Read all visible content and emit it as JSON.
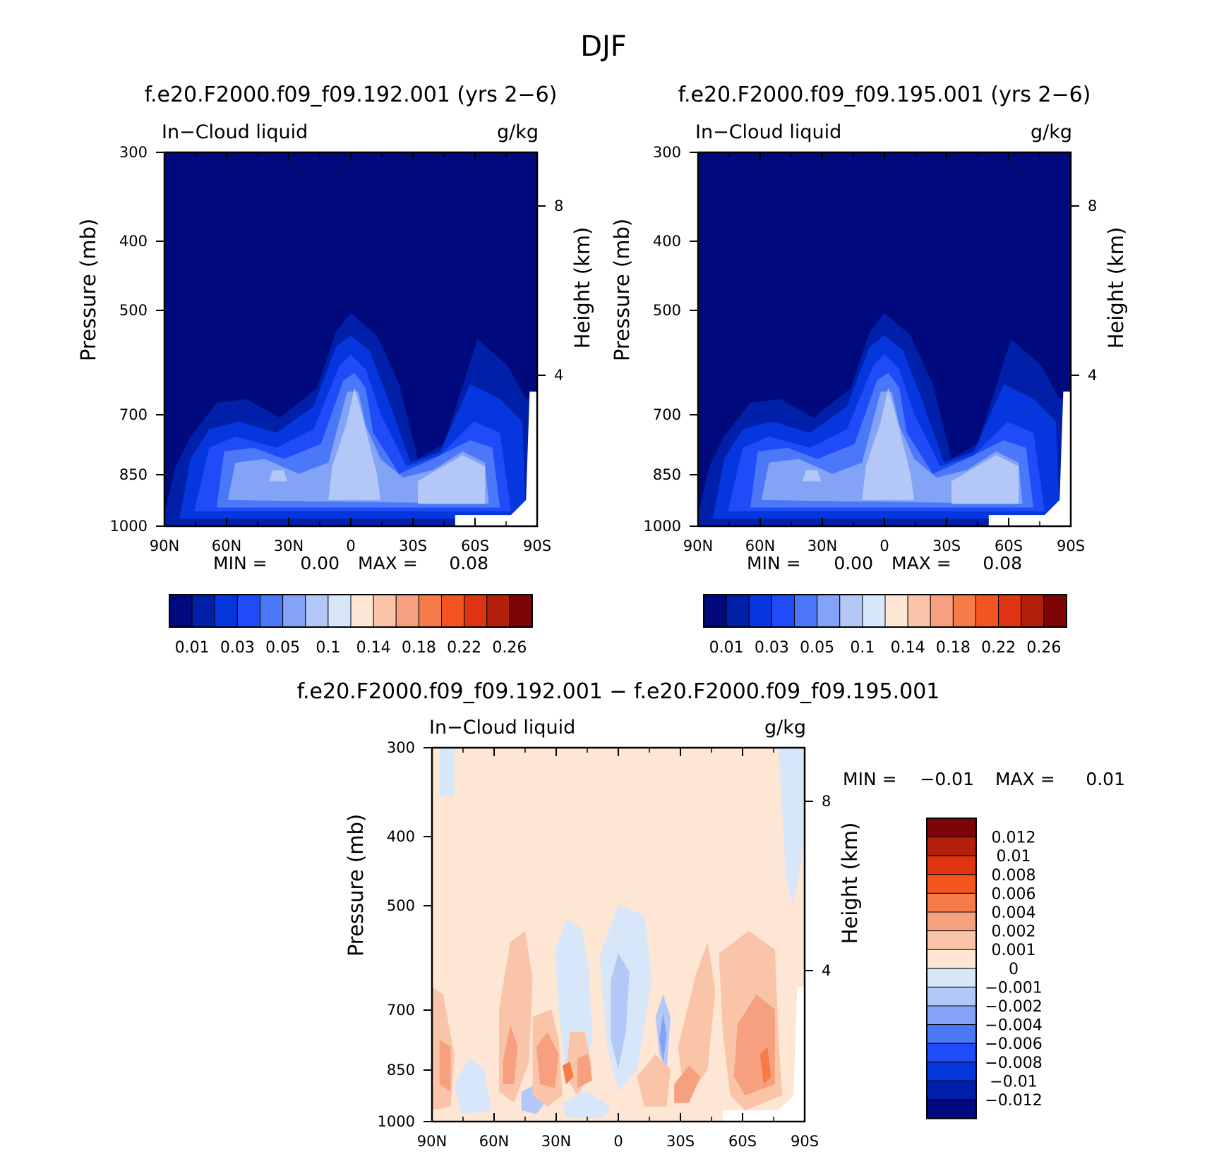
{
  "figure_title": "DJF",
  "colors": {
    "abs_levels": [
      "#000a7c",
      "#0120a9",
      "#0536de",
      "#1f4cf8",
      "#4a78f8",
      "#82a3f6",
      "#b3c8f7",
      "#d8e6fa",
      "#fde6d4",
      "#fac4a8",
      "#f6a07f",
      "#f67b48",
      "#f4541f",
      "#df3411",
      "#b5200d",
      "#7d0407"
    ],
    "diff_levels_top_to_bottom": [
      "#7d0407",
      "#b5200d",
      "#df3411",
      "#f4541f",
      "#f67b48",
      "#f6a07f",
      "#fac4a8",
      "#fde6d4",
      "#d8e6fa",
      "#b3c8f7",
      "#82a3f6",
      "#4a78f8",
      "#1f4cf8",
      "#0536de",
      "#0120a9",
      "#000a7c"
    ]
  },
  "chart_data": [
    {
      "type": "heatmap",
      "title": "f.e20.F2000.f09_f09.192.001 (yrs 2−6)",
      "left_label": "In−Cloud liquid",
      "right_label": "g/kg",
      "ylabel": "Pressure (mb)",
      "ylabel_right": "Height (km)",
      "x_ticks": [
        "90N",
        "60N",
        "30N",
        "0",
        "30S",
        "60S",
        "90S"
      ],
      "y_ticks": [
        "300",
        "400",
        "500",
        "700",
        "850",
        "1000"
      ],
      "y_ticks_right": [
        "8",
        "4"
      ],
      "ylim": [
        1000,
        300
      ],
      "stats": {
        "min_label": "MIN =",
        "min": "0.00",
        "max_label": "MAX =",
        "max": "0.08"
      },
      "colorbar_labels": [
        "0.01",
        "0.03",
        "0.05",
        "0.1",
        "0.14",
        "0.18",
        "0.22",
        "0.26"
      ]
    },
    {
      "type": "heatmap",
      "title": "f.e20.F2000.f09_f09.195.001 (yrs 2−6)",
      "left_label": "In−Cloud liquid",
      "right_label": "g/kg",
      "ylabel": "Pressure (mb)",
      "ylabel_right": "Height (km)",
      "x_ticks": [
        "90N",
        "60N",
        "30N",
        "0",
        "30S",
        "60S",
        "90S"
      ],
      "y_ticks": [
        "300",
        "400",
        "500",
        "700",
        "850",
        "1000"
      ],
      "y_ticks_right": [
        "8",
        "4"
      ],
      "ylim": [
        1000,
        300
      ],
      "stats": {
        "min_label": "MIN =",
        "min": "0.00",
        "max_label": "MAX =",
        "max": "0.08"
      },
      "colorbar_labels": [
        "0.01",
        "0.03",
        "0.05",
        "0.1",
        "0.14",
        "0.18",
        "0.22",
        "0.26"
      ]
    },
    {
      "type": "heatmap",
      "title": "f.e20.F2000.f09_f09.192.001 − f.e20.F2000.f09_f09.195.001",
      "left_label": "In−Cloud liquid",
      "right_label": "g/kg",
      "ylabel": "Pressure (mb)",
      "ylabel_right": "Height (km)",
      "x_ticks": [
        "90N",
        "60N",
        "30N",
        "0",
        "30S",
        "60S",
        "90S"
      ],
      "y_ticks": [
        "300",
        "400",
        "500",
        "700",
        "850",
        "1000"
      ],
      "y_ticks_right": [
        "8",
        "4"
      ],
      "ylim": [
        1000,
        300
      ],
      "stats": {
        "min_label": "MIN =",
        "min": "−0.01",
        "max_label": "MAX =",
        "max": "0.01"
      },
      "colorbar_labels": [
        "0.012",
        "0.01",
        "0.008",
        "0.006",
        "0.004",
        "0.002",
        "0.001",
        "0",
        "−0.001",
        "−0.002",
        "−0.004",
        "−0.006",
        "−0.008",
        "−0.01",
        "−0.012"
      ]
    }
  ]
}
